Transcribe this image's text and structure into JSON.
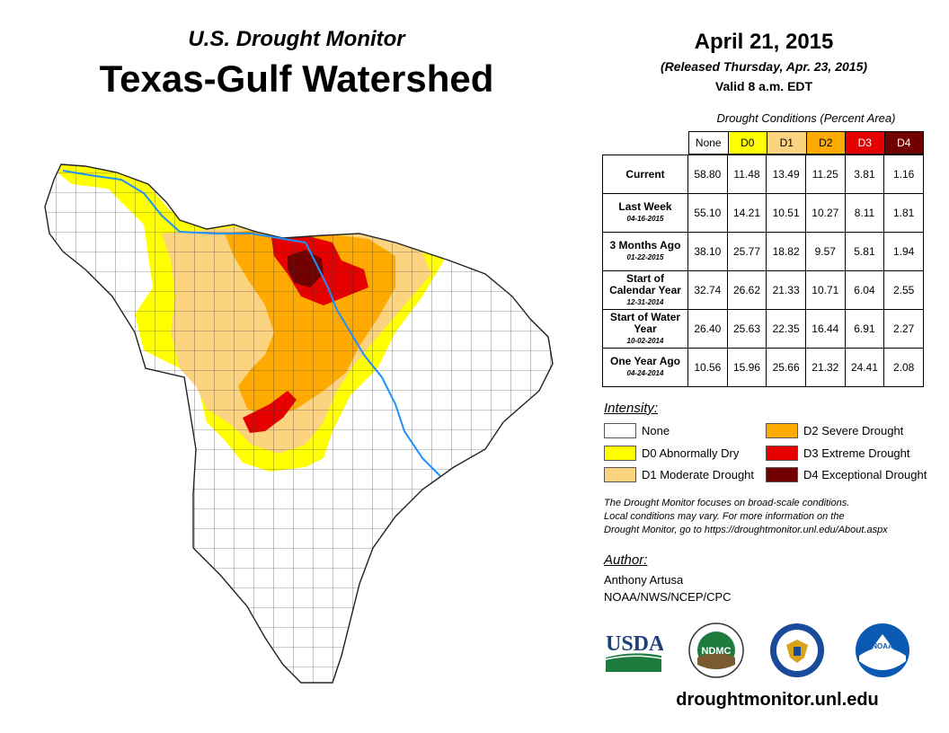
{
  "header": {
    "subtitle": "U.S. Drought Monitor",
    "title": "Texas-Gulf Watershed",
    "date": "April 21, 2015",
    "released": "(Released Thursday, Apr. 23, 2015)",
    "valid": "Valid 8 a.m. EDT"
  },
  "table": {
    "caption": "Drought Conditions (Percent Area)",
    "columns": [
      "None",
      "D0",
      "D1",
      "D2",
      "D3",
      "D4"
    ],
    "column_colors": [
      "#ffffff",
      "#ffff00",
      "#fcd37f",
      "#ffaa00",
      "#e60000",
      "#730000"
    ],
    "rows": [
      {
        "label": "Current",
        "sub": "",
        "values": [
          "58.80",
          "11.48",
          "13.49",
          "11.25",
          "3.81",
          "1.16"
        ]
      },
      {
        "label": "Last Week",
        "sub": "04-16-2015",
        "values": [
          "55.10",
          "14.21",
          "10.51",
          "10.27",
          "8.11",
          "1.81"
        ]
      },
      {
        "label": "3 Months Ago",
        "sub": "01-22-2015",
        "values": [
          "38.10",
          "25.77",
          "18.82",
          "9.57",
          "5.81",
          "1.94"
        ]
      },
      {
        "label": "Start of Calendar Year",
        "sub": "12-31-2014",
        "values": [
          "32.74",
          "26.62",
          "21.33",
          "10.71",
          "6.04",
          "2.55"
        ]
      },
      {
        "label": "Start of Water Year",
        "sub": "10-02-2014",
        "values": [
          "26.40",
          "25.63",
          "22.35",
          "16.44",
          "6.91",
          "2.27"
        ]
      },
      {
        "label": "One Year Ago",
        "sub": "04-24-2014",
        "values": [
          "10.56",
          "15.96",
          "25.66",
          "21.32",
          "24.41",
          "2.08"
        ]
      }
    ]
  },
  "legend": {
    "title": "Intensity:",
    "items": [
      {
        "label": "None",
        "color": "#ffffff"
      },
      {
        "label": "D0 Abnormally Dry",
        "color": "#ffff00"
      },
      {
        "label": "D1 Moderate Drought",
        "color": "#fcd37f"
      },
      {
        "label": "D2 Severe Drought",
        "color": "#ffaa00"
      },
      {
        "label": "D3 Extreme Drought",
        "color": "#e60000"
      },
      {
        "label": "D4 Exceptional Drought",
        "color": "#730000"
      }
    ]
  },
  "note": {
    "line1": "The Drought Monitor focuses on broad-scale conditions.",
    "line2": "Local conditions may vary. For more information on the",
    "line3": "Drought Monitor, go to https://droughtmonitor.unl.edu/About.aspx"
  },
  "author": {
    "title": "Author:",
    "name": "Anthony Artusa",
    "org": "NOAA/NWS/NCEP/CPC"
  },
  "logos": {
    "usda": "USDA",
    "ndmc": "NDMC",
    "noaa": "NOAA"
  },
  "website": "droughtmonitor.unl.edu",
  "colors": {
    "river": "#1e90ff",
    "county_lines": "#333333"
  }
}
